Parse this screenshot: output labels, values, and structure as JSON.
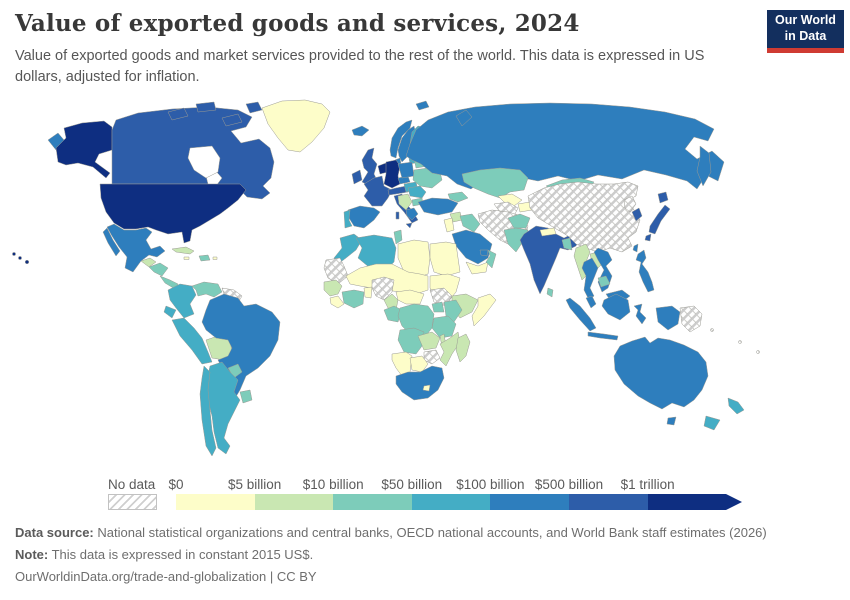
{
  "header": {
    "title": "Value of exported goods and services, 2024",
    "subtitle": "Value of exported goods and market services provided to the rest of the world. This data is expressed in US dollars, adjusted for inflation.",
    "logo_line1": "Our World",
    "logo_line2": "in Data",
    "logo_bg": "#132f5e",
    "logo_accent": "#cf3b32"
  },
  "legend": {
    "no_data_label": "No data",
    "tick_labels": [
      "$0",
      "$5 billion",
      "$10 billion",
      "$50 billion",
      "$100 billion",
      "$500 billion",
      "$1 trillion"
    ]
  },
  "footer": {
    "source_label": "Data source:",
    "source_text": " National statistical organizations and central banks, OECD national accounts, and World Bank staff estimates (2026)",
    "note_label": "Note:",
    "note_text": " This data is expressed in constant 2015 US$.",
    "link_text": "OurWorldinData.org/trade-and-globalization | CC BY"
  },
  "chart_data": {
    "type": "heatmap",
    "subtype": "choropleth-world-map",
    "title": "Value of exported goods and services, 2024",
    "unit": "constant 2015 US$",
    "legend_position": "bottom",
    "no_data": {
      "label": "No data",
      "pattern": "diagonal-hatch"
    },
    "legend_bins": [
      {
        "range": "$0 – $5 billion",
        "color": "#fdfdc9"
      },
      {
        "range": "$5 billion – $10 billion",
        "color": "#c9e7b2"
      },
      {
        "range": "$10 billion – $50 billion",
        "color": "#7dccba"
      },
      {
        "range": "$50 billion – $100 billion",
        "color": "#44adc5"
      },
      {
        "range": "$100 billion – $500 billion",
        "color": "#2e7ebd"
      },
      {
        "range": "$500 billion – $1 trillion",
        "color": "#2d5da9"
      },
      {
        "range": "$1 trillion +",
        "color": "#0e2e81"
      }
    ],
    "region_bins": {
      "united-states": 7,
      "canada": 6,
      "greenland": 1,
      "mexico": 5,
      "guatemala-belize": 2,
      "honduras-nicaragua": 3,
      "costa-panama": 3,
      "cuba": 2,
      "jamaica": 1,
      "hispaniola": 3,
      "puerto-rico": 1,
      "colombia": 4,
      "venezuela": 3,
      "guyana-suriname": 0,
      "ecuador": 4,
      "peru": 4,
      "brazil": 5,
      "bolivia": 2,
      "paraguay": 3,
      "chile": 4,
      "argentina": 4,
      "uruguay": 3,
      "iceland": 5,
      "norway": 5,
      "sweden": 5,
      "finland": 4,
      "denmark": 5,
      "united-kingdom": 6,
      "ireland": 6,
      "netherlands-belgium": 7,
      "germany": 7,
      "france": 6,
      "spain": 5,
      "portugal": 4,
      "switzerland-austria": 6,
      "italy": 6,
      "poland": 5,
      "czechia": 5,
      "slovakia-hungary": 4,
      "balkans": 2,
      "greece": 5,
      "bulgaria": 3,
      "romania": 4,
      "baltics": 4,
      "belarus": 3,
      "ukraine": 3,
      "russia": 5,
      "svalbard": 5,
      "turkey": 5,
      "georgia-azerbaijan": 3,
      "syria": 2,
      "iraq": 3,
      "israel-jordan": 1,
      "saudi-arabia": 5,
      "yemen": 1,
      "oman": 3,
      "uae": 5,
      "iran": 0,
      "turkmenistan": 0,
      "uzbekistan": 1,
      "kyrgyz-tajik": 1,
      "kazakhstan": 3,
      "afghanistan": 3,
      "pakistan": 3,
      "india": 6,
      "nepal": 1,
      "bangladesh": 3,
      "sri-lanka": 3,
      "china": 0,
      "mongolia": 3,
      "north-korea": 0,
      "south-korea": 6,
      "japan": 6,
      "taiwan": 5,
      "myanmar": 2,
      "laos": 2,
      "thailand": 5,
      "vietnam": 5,
      "cambodia": 3,
      "malaysia": 5,
      "philippines": 5,
      "indonesia": 5,
      "papua-new-guinea": 0,
      "pacific-islands": 0,
      "morocco": 4,
      "western-sahara-mauritania": 0,
      "algeria": 4,
      "tunisia": 3,
      "libya": 1,
      "egypt": 1,
      "sahel": 1,
      "sudan": 1,
      "senegal-guinea": 2,
      "sierra-leone-liberia": 1,
      "ivory-ghana": 3,
      "togo-benin": 1,
      "nigeria": 0,
      "cameroon": 2,
      "central-african-republic": 1,
      "south-sudan": 0,
      "ethiopia": 2,
      "somalia": 1,
      "gabon-congo": 3,
      "uganda": 3,
      "kenya": 3,
      "dr-congo": 3,
      "tanzania": 3,
      "angola": 3,
      "zambia": 2,
      "malawi": 2,
      "mozambique": 2,
      "zimbabwe": 0,
      "namibia": 1,
      "botswana": 1,
      "south-africa": 5,
      "lesotho": 1,
      "madagascar": 2,
      "australia": 5,
      "new-zealand": 4
    }
  }
}
